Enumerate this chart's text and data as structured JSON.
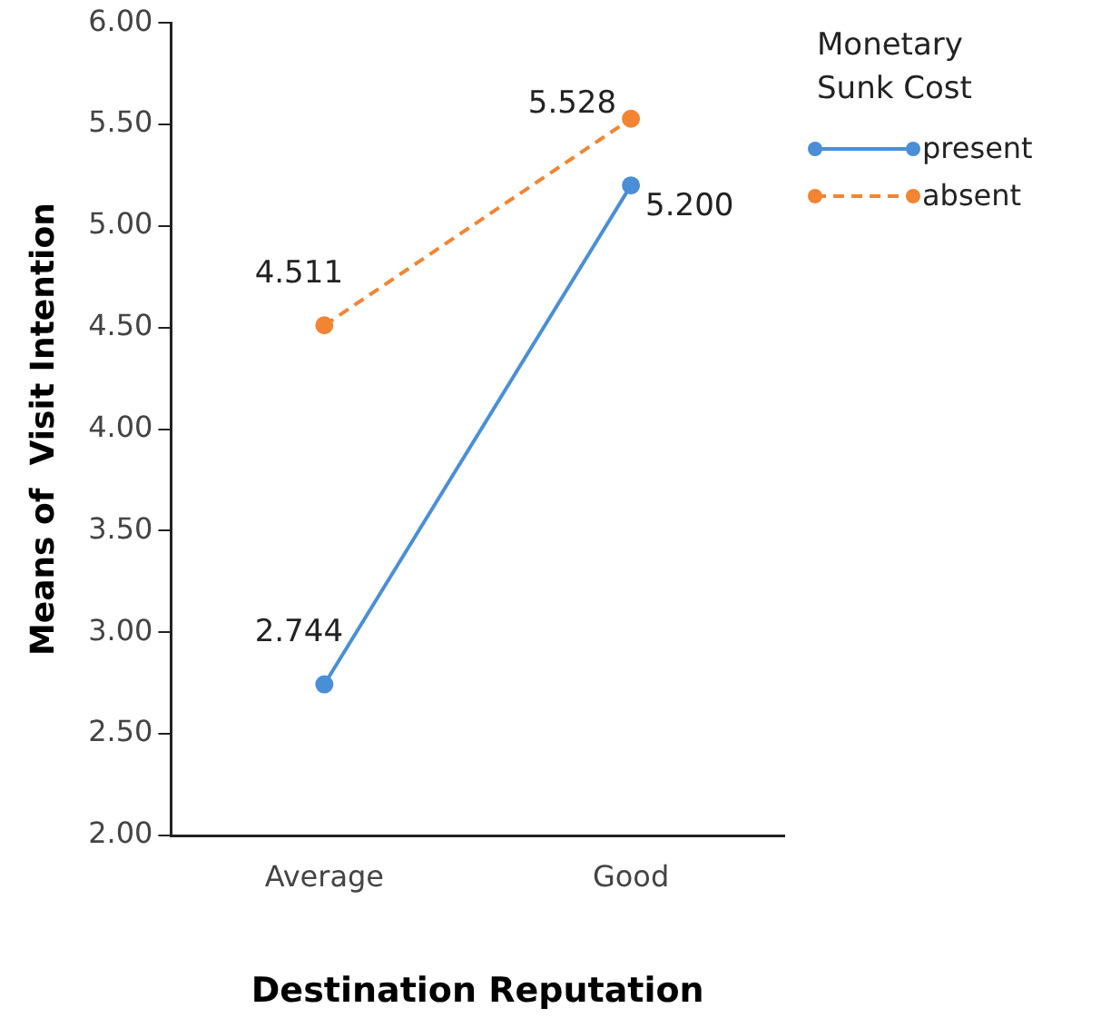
{
  "chart_data": {
    "type": "line",
    "xlabel": "Destination Reputation",
    "ylabel": "Means of  Visit Intention",
    "legend_title": "Monetary Sunk Cost",
    "categories": [
      "Average",
      "Good"
    ],
    "series": [
      {
        "name": "present",
        "color": "#4a8fd6",
        "values": [
          2.744,
          5.2
        ],
        "value_labels": [
          "2.744",
          "5.200"
        ],
        "line_style": "solid"
      },
      {
        "name": "absent",
        "color": "#f28533",
        "values": [
          4.511,
          5.528
        ],
        "value_labels": [
          "4.511",
          "5.528"
        ],
        "line_style": "dashed"
      }
    ],
    "ylim": [
      2,
      6
    ],
    "yticks": [
      {
        "value": 2,
        "label": "2.00"
      },
      {
        "value": 2.5,
        "label": "2.50"
      },
      {
        "value": 3,
        "label": "3.00"
      },
      {
        "value": 3.5,
        "label": "3.50"
      },
      {
        "value": 4,
        "label": "4.00"
      },
      {
        "value": 4.5,
        "label": "4.50"
      },
      {
        "value": 5,
        "label": "5.00"
      },
      {
        "value": 5.5,
        "label": "5.50"
      },
      {
        "value": 6,
        "label": "6.00"
      }
    ],
    "grid": false,
    "legend": "top right",
    "marker": "circle"
  }
}
